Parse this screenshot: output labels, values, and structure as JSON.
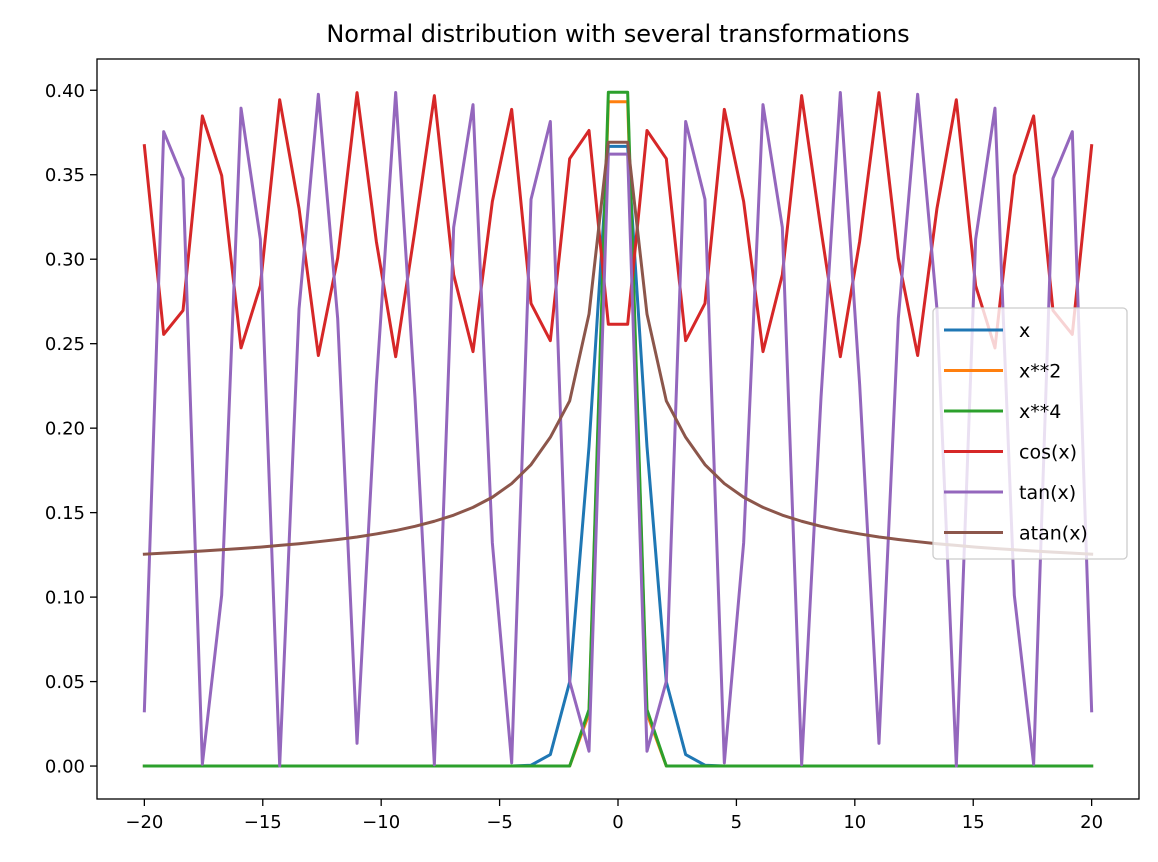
{
  "chart_data": {
    "type": "line",
    "title": "Normal distribution with several transformations",
    "xlabel": "",
    "ylabel": "",
    "xlim": [
      -22,
      22
    ],
    "ylim": [
      -0.0195,
      0.4185
    ],
    "xticks": [
      -20,
      -15,
      -10,
      -5,
      0,
      5,
      10,
      15,
      20
    ],
    "xtick_labels": [
      "−20",
      "−15",
      "−10",
      "−5",
      "0",
      "5",
      "10",
      "15",
      "20"
    ],
    "yticks": [
      0.0,
      0.05,
      0.1,
      0.15,
      0.2,
      0.25,
      0.3,
      0.35,
      0.4
    ],
    "ytick_labels": [
      "0.00",
      "0.05",
      "0.10",
      "0.15",
      "0.20",
      "0.25",
      "0.30",
      "0.35",
      "0.40"
    ],
    "grid": false,
    "legend_position": "center-right",
    "x": [
      -20.0,
      -19.184,
      -18.367,
      -17.551,
      -16.735,
      -15.918,
      -15.102,
      -14.286,
      -13.469,
      -12.653,
      -11.837,
      -11.02,
      -10.204,
      -9.388,
      -8.571,
      -7.755,
      -6.939,
      -6.122,
      -5.306,
      -4.49,
      -3.673,
      -2.857,
      -2.041,
      -1.224,
      -0.408,
      0.408,
      1.224,
      2.041,
      2.857,
      3.673,
      4.49,
      5.306,
      6.122,
      6.939,
      7.755,
      8.571,
      9.388,
      10.204,
      11.02,
      11.837,
      12.653,
      13.469,
      14.286,
      15.102,
      15.918,
      16.735,
      17.551,
      18.367,
      19.184,
      20.0
    ],
    "series": [
      {
        "name": "x",
        "color": "#1f77b4",
        "values": [
          0,
          0,
          0,
          0,
          0,
          0,
          0,
          0,
          0,
          0,
          0,
          0,
          0,
          0,
          0,
          0,
          0,
          0,
          0,
          0,
          0.0005,
          0.0068,
          0.0498,
          0.1891,
          0.3668,
          0.3668,
          0.1891,
          0.0498,
          0.0068,
          0.0005,
          0,
          0,
          0,
          0,
          0,
          0,
          0,
          0,
          0,
          0,
          0,
          0,
          0,
          0,
          0,
          0,
          0,
          0,
          0,
          0
        ]
      },
      {
        "name": "x**2",
        "color": "#ff7f0e",
        "values": [
          0,
          0,
          0,
          0,
          0,
          0,
          0,
          0,
          0,
          0,
          0,
          0,
          0,
          0,
          0,
          0,
          0,
          0,
          0,
          0,
          0,
          0,
          0,
          0.0309,
          0.3932,
          0.3932,
          0.0309,
          0,
          0,
          0,
          0,
          0,
          0,
          0,
          0,
          0,
          0,
          0,
          0,
          0,
          0,
          0,
          0,
          0,
          0,
          0,
          0,
          0,
          0,
          0
        ]
      },
      {
        "name": "x**4",
        "color": "#2ca02c",
        "values": [
          0,
          0,
          0,
          0,
          0,
          0,
          0,
          0,
          0,
          0,
          0,
          0,
          0,
          0,
          0,
          0,
          0,
          0,
          0,
          0,
          0,
          0,
          0,
          0.0334,
          0.3988,
          0.3988,
          0.0334,
          0,
          0,
          0,
          0,
          0,
          0,
          0,
          0,
          0,
          0,
          0,
          0,
          0,
          0,
          0,
          0,
          0,
          0,
          0,
          0,
          0,
          0,
          0
        ]
      },
      {
        "name": "cos(x)",
        "color": "#d62728",
        "values": [
          0.3672,
          0.2555,
          0.2697,
          0.3848,
          0.3495,
          0.2475,
          0.2843,
          0.3944,
          0.3301,
          0.243,
          0.3006,
          0.3986,
          0.3105,
          0.2423,
          0.3176,
          0.3968,
          0.2908,
          0.2453,
          0.3341,
          0.3887,
          0.2738,
          0.2518,
          0.3595,
          0.3762,
          0.2615,
          0.2615,
          0.3762,
          0.3595,
          0.2518,
          0.2738,
          0.3887,
          0.3341,
          0.2453,
          0.2908,
          0.3968,
          0.3176,
          0.2423,
          0.3105,
          0.3986,
          0.3006,
          0.243,
          0.3301,
          0.3944,
          0.2843,
          0.2475,
          0.3495,
          0.3848,
          0.2697,
          0.2555,
          0.3672
        ]
      },
      {
        "name": "tan(x)",
        "color": "#9467bd",
        "values": [
          0.0327,
          0.3755,
          0.3478,
          0.0011,
          0.1011,
          0.3894,
          0.3118,
          0.0001,
          0.2705,
          0.3976,
          0.2649,
          0.0135,
          0.2258,
          0.3987,
          0.2179,
          0.0008,
          0.3189,
          0.3915,
          0.1322,
          0.0019,
          0.3354,
          0.3815,
          0.0502,
          0.0088,
          0.3622,
          0.3622,
          0.0088,
          0.0502,
          0.3815,
          0.3354,
          0.0019,
          0.1322,
          0.3915,
          0.3189,
          0.0008,
          0.2179,
          0.3987,
          0.2258,
          0.0135,
          0.2649,
          0.3976,
          0.2705,
          0.0001,
          0.3118,
          0.3894,
          0.1011,
          0.0011,
          0.3478,
          0.3755,
          0.0327
        ]
      },
      {
        "name": "atan(x)",
        "color": "#8c564b",
        "values": [
          0.1254,
          0.126,
          0.1266,
          0.1273,
          0.128,
          0.1288,
          0.1296,
          0.1306,
          0.1316,
          0.1328,
          0.1341,
          0.1356,
          0.1374,
          0.1394,
          0.1419,
          0.1449,
          0.1485,
          0.1531,
          0.1591,
          0.1672,
          0.1784,
          0.1946,
          0.2161,
          0.2675,
          0.3692,
          0.3692,
          0.2675,
          0.2161,
          0.1946,
          0.1784,
          0.1672,
          0.1591,
          0.1531,
          0.1485,
          0.1449,
          0.1419,
          0.1394,
          0.1374,
          0.1356,
          0.1341,
          0.1328,
          0.1316,
          0.1306,
          0.1296,
          0.1288,
          0.128,
          0.1273,
          0.1266,
          0.126,
          0.1254
        ]
      }
    ]
  }
}
